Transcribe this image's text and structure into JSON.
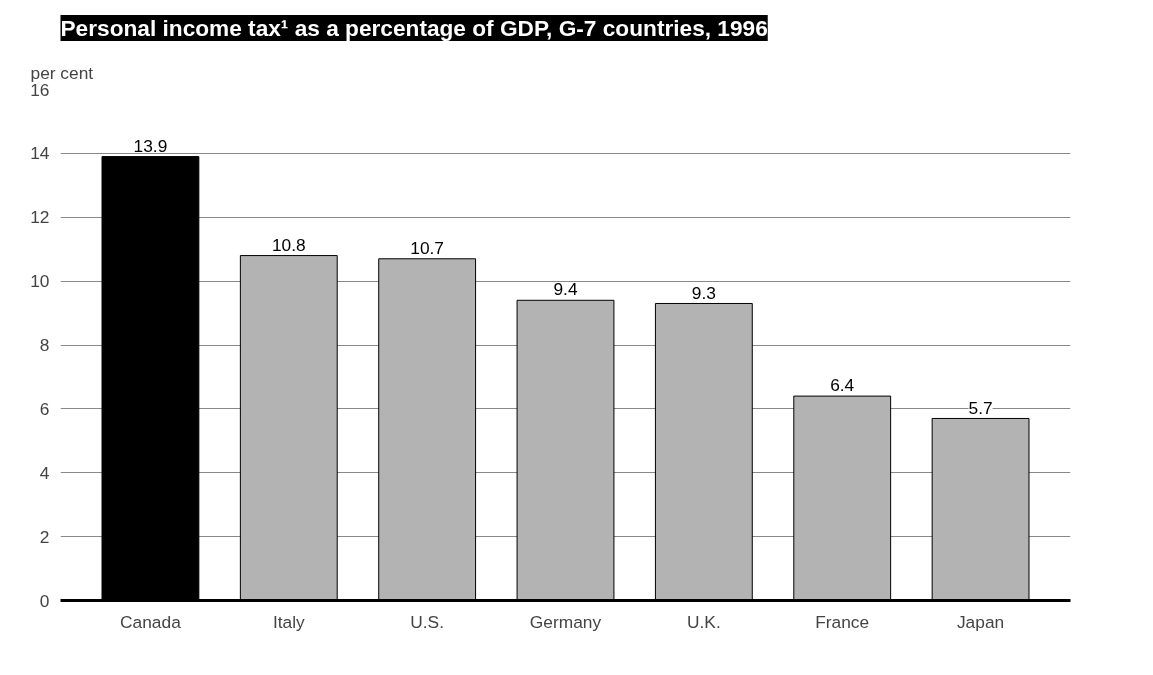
{
  "chart_data": {
    "type": "bar",
    "title": "Personal income tax¹ as a percentage of GDP, G-7 countries, 1996",
    "ylabel": "per cent",
    "categories": [
      "Canada",
      "Italy",
      "U.S.",
      "Germany",
      "U.K.",
      "France",
      "Japan"
    ],
    "values": [
      13.9,
      10.8,
      10.7,
      9.4,
      9.3,
      6.4,
      5.7
    ],
    "colors": [
      "#000000",
      "#b3b3b3",
      "#b3b3b3",
      "#b3b3b3",
      "#b3b3b3",
      "#b3b3b3",
      "#b3b3b3"
    ],
    "ylim": [
      0,
      16
    ],
    "yticks": [
      0,
      2,
      4,
      6,
      8,
      10,
      12,
      14,
      16
    ],
    "grid": "y",
    "data_labels": true
  }
}
